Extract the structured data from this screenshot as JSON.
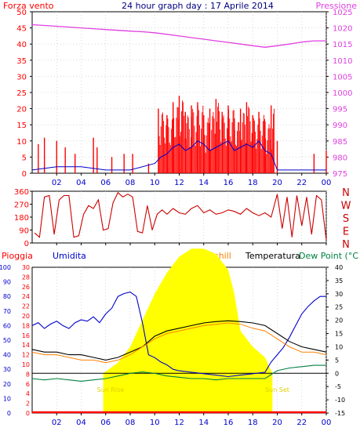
{
  "title": "24 hour graph day : 17 Aprile 2014",
  "time_ticks": [
    "02",
    "04",
    "06",
    "08",
    "10",
    "12",
    "14",
    "16",
    "18",
    "20",
    "22",
    "00"
  ],
  "colors": {
    "background": "#ffffff",
    "frame": "#000000",
    "grid": "#c0c0c0",
    "wind": "#ff0000",
    "gust": "#ff0000",
    "avgwind": "#0000cc",
    "pressure": "#e040e0",
    "winddir": "#cc0000",
    "rain": "#ff0000",
    "humidity": "#0000cc",
    "windchill": "#ff8000",
    "temperature": "#000000",
    "dewpoint": "#008040",
    "solar": "#ffff00",
    "sun_text": "#e0d000",
    "zero_line": "#000000",
    "title": "#000080"
  },
  "chart_data": [
    {
      "type": "line",
      "labels": {
        "left": "Forza vento",
        "right": "Pressione"
      },
      "left_axis": {
        "ylim": [
          0,
          50
        ],
        "ticks": [
          "0",
          "5",
          "10",
          "15",
          "20",
          "25",
          "30",
          "35",
          "40",
          "45",
          "50"
        ]
      },
      "right_axis": {
        "ylim": [
          975,
          1025
        ],
        "ticks": [
          "975",
          "980",
          "985",
          "990",
          "995",
          "1000",
          "1005",
          "1010",
          "1015",
          "1020",
          "1025"
        ]
      },
      "series": [
        {
          "key": "pressure",
          "x": [
            0,
            2,
            4,
            6,
            8,
            9,
            10,
            11,
            12,
            13,
            14,
            15,
            16,
            17,
            18,
            19,
            20,
            21,
            22,
            23,
            24
          ],
          "values": [
            1021,
            1020.5,
            1020,
            1019.5,
            1019,
            1018.8,
            1018.5,
            1018,
            1017.5,
            1017,
            1016.5,
            1016,
            1015.5,
            1015,
            1014.5,
            1014,
            1014.5,
            1015,
            1015.6,
            1016,
            1016
          ]
        },
        {
          "key": "gust",
          "x": [
            0.5,
            1.0,
            2.0,
            2.7,
            3.5,
            5.0,
            5.3,
            6.5,
            7.5,
            8.2,
            9.5,
            10.3,
            11.0,
            11.5,
            12.0,
            12.5,
            13.0,
            13.5,
            14.0,
            14.5,
            15.0,
            15.5,
            16.0,
            16.5,
            17.0,
            17.5,
            18.0,
            18.5,
            19.0,
            19.5,
            20.0,
            23.0,
            24.0
          ],
          "values": [
            9,
            11,
            10,
            8,
            6,
            11,
            8,
            5,
            6,
            6,
            3,
            20,
            18,
            22,
            24,
            19,
            21,
            22,
            18,
            20,
            23,
            19,
            21,
            17,
            20,
            22,
            18,
            19,
            16,
            21,
            10,
            6,
            7
          ]
        },
        {
          "key": "avgwind",
          "x": [
            0,
            2,
            4,
            6,
            8,
            10,
            10.5,
            11,
            11.5,
            12,
            12.5,
            13,
            13.5,
            14,
            14.5,
            15,
            15.5,
            16,
            16.5,
            17,
            17.5,
            18,
            18.5,
            19,
            19.5,
            20,
            22,
            24
          ],
          "values": [
            1,
            2,
            2,
            1,
            1,
            3,
            5,
            6,
            8,
            9,
            7,
            8,
            10,
            9,
            7,
            8,
            9,
            10,
            7,
            8,
            9,
            8,
            10,
            7,
            6,
            1,
            1,
            1
          ]
        }
      ]
    },
    {
      "type": "line",
      "labels": {
        "right": [
          "N",
          "W",
          "S",
          "E",
          "N"
        ]
      },
      "ylim": [
        0,
        360
      ],
      "ticks": [
        "0",
        "90",
        "180",
        "270",
        "360"
      ],
      "series": [
        {
          "key": "winddir",
          "x": [
            0.2,
            0.6,
            1.0,
            1.4,
            1.8,
            2.2,
            2.6,
            3.0,
            3.4,
            3.8,
            4.2,
            4.6,
            5.0,
            5.4,
            5.8,
            6.2,
            6.6,
            7.0,
            7.4,
            7.8,
            8.2,
            8.6,
            9.0,
            9.4,
            9.8,
            10.2,
            10.6,
            11.0,
            11.5,
            12.0,
            12.5,
            13.0,
            13.5,
            14.0,
            14.5,
            15.0,
            15.5,
            16.0,
            16.5,
            17.0,
            17.5,
            18.0,
            18.5,
            19.0,
            19.5,
            20.0,
            20.4,
            20.8,
            21.2,
            21.6,
            22.0,
            22.4,
            22.8,
            23.2,
            23.6,
            24.0
          ],
          "values": [
            70,
            40,
            320,
            330,
            60,
            300,
            330,
            330,
            40,
            50,
            200,
            260,
            240,
            300,
            90,
            100,
            280,
            350,
            320,
            340,
            320,
            80,
            70,
            260,
            90,
            200,
            230,
            200,
            240,
            210,
            200,
            240,
            260,
            210,
            230,
            200,
            210,
            230,
            220,
            200,
            240,
            210,
            190,
            210,
            180,
            340,
            100,
            320,
            40,
            330,
            120,
            320,
            60,
            330,
            300,
            20
          ]
        }
      ]
    },
    {
      "type": "line",
      "labels": {
        "rain": "Pioggia",
        "humidity": "Umidita",
        "windchill": "Windchill",
        "temperature": "Temperatura",
        "dewpoint": "Dew Point (°C"
      },
      "axis_rain": {
        "ylim": [
          0,
          30
        ],
        "ticks": [
          "0",
          "2",
          "4",
          "6",
          "8",
          "10",
          "12",
          "14",
          "16",
          "18",
          "20",
          "22",
          "24",
          "26",
          "28",
          "30"
        ]
      },
      "axis_humidity": {
        "ylim": [
          0,
          100
        ],
        "ticks": [
          "0",
          "10",
          "20",
          "30",
          "40",
          "50",
          "60",
          "70",
          "80",
          "90",
          "100"
        ]
      },
      "axis_temp": {
        "ylim": [
          -15,
          40
        ],
        "ticks": [
          "-15",
          "-10",
          "-5",
          "0",
          "5",
          "10",
          "15",
          "20",
          "25",
          "30",
          "35",
          "40"
        ]
      },
      "annotations": {
        "sunrise": "Sun Rise",
        "sunset": "Sun Set"
      },
      "series": [
        {
          "key": "humidity",
          "x": [
            0,
            0.5,
            1,
            1.5,
            2,
            2.5,
            3,
            3.5,
            4,
            4.5,
            5,
            5.5,
            6,
            6.5,
            7,
            7.5,
            8,
            8.5,
            9,
            9.5,
            10,
            10.5,
            11,
            11.5,
            12,
            13,
            14,
            15,
            16,
            17,
            18,
            19,
            19.5,
            20,
            20.5,
            21,
            21.5,
            22,
            22.5,
            23,
            23.5,
            24
          ],
          "values": [
            60,
            62,
            58,
            61,
            63,
            60,
            58,
            62,
            64,
            63,
            66,
            62,
            68,
            72,
            80,
            82,
            83,
            80,
            62,
            40,
            38,
            35,
            33,
            30,
            29,
            28,
            27,
            26,
            25,
            26,
            27,
            28,
            35,
            40,
            45,
            52,
            60,
            68,
            73,
            77,
            80,
            80
          ]
        },
        {
          "key": "temperature",
          "x": [
            0,
            1,
            2,
            3,
            4,
            5,
            6,
            7,
            8,
            9,
            10,
            11,
            12,
            13,
            14,
            15,
            16,
            17,
            18,
            19,
            20,
            21,
            22,
            23,
            24
          ],
          "values": [
            9,
            8,
            8,
            7,
            7,
            6,
            5,
            6,
            8,
            10,
            14,
            16,
            17,
            18,
            19,
            19.5,
            19.8,
            19.5,
            19,
            18,
            15,
            12,
            10,
            9,
            8
          ]
        },
        {
          "key": "windchill",
          "x": [
            0,
            1,
            2,
            3,
            4,
            5,
            6,
            7,
            8,
            9,
            10,
            11,
            12,
            13,
            14,
            15,
            16,
            17,
            18,
            19,
            20,
            21,
            22,
            23,
            24
          ],
          "values": [
            8,
            7,
            7,
            6,
            5,
            5,
            4,
            5,
            7,
            10,
            13,
            15,
            16,
            17,
            18,
            18.5,
            19,
            18.5,
            17,
            16,
            13,
            10,
            8,
            8,
            7
          ]
        },
        {
          "key": "dewpoint",
          "x": [
            0,
            1,
            2,
            3,
            4,
            5,
            6,
            7,
            8,
            9,
            10,
            11,
            12,
            13,
            14,
            15,
            16,
            17,
            18,
            19,
            20,
            21,
            22,
            23,
            24
          ],
          "values": [
            -2,
            -2.5,
            -2,
            -2.5,
            -3,
            -2.5,
            -2,
            -1,
            0,
            0.5,
            0,
            -1,
            -1.5,
            -2,
            -2,
            -2.5,
            -2,
            -2,
            -2,
            -2,
            1,
            2,
            2.5,
            3,
            3
          ]
        },
        {
          "key": "solar",
          "x": [
            5.8,
            7,
            8,
            9,
            10,
            11,
            12,
            13,
            14,
            15,
            16,
            16.5,
            17,
            18,
            19,
            19.6
          ],
          "values": [
            0,
            4,
            10,
            20,
            30,
            38,
            44,
            47,
            47,
            45,
            39,
            30,
            16,
            10,
            6,
            0
          ]
        }
      ]
    }
  ]
}
